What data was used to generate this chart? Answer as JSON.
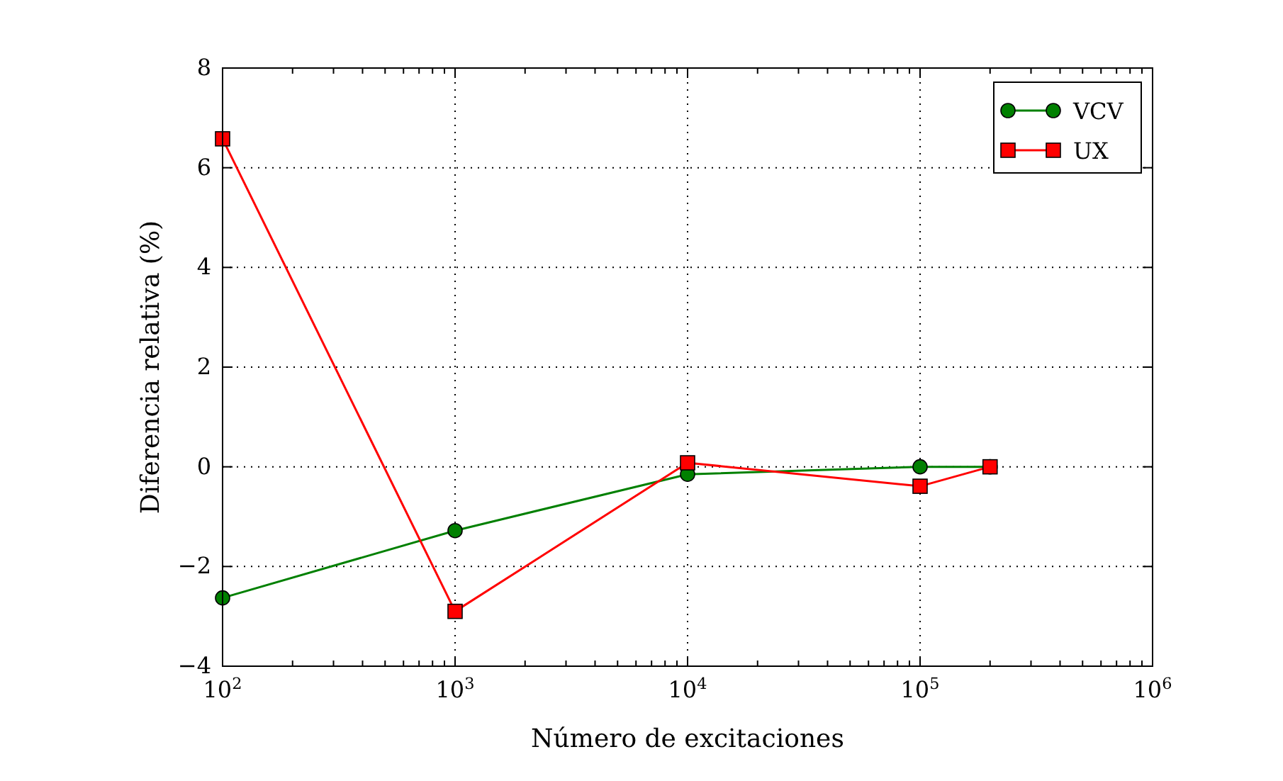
{
  "chart_data": {
    "type": "line",
    "xlabel": "Número de excitaciones",
    "ylabel": "Diferencia relativa (%)",
    "log": "x",
    "grid": true,
    "legend": "top right",
    "line_style": "solid",
    "xlim": [
      100,
      1000000
    ],
    "ylim": [
      -4,
      8
    ],
    "xticks": [
      {
        "value": 100,
        "label": "10$^{2}$"
      },
      {
        "value": 200,
        "label": null
      },
      {
        "value": 300,
        "label": null
      },
      {
        "value": 400,
        "label": null
      },
      {
        "value": 500,
        "label": null
      },
      {
        "value": 600,
        "label": null
      },
      {
        "value": 700,
        "label": null
      },
      {
        "value": 800,
        "label": null
      },
      {
        "value": 900,
        "label": null
      },
      {
        "value": 1000,
        "label": "10$^{3}$"
      },
      {
        "value": 2000,
        "label": null
      },
      {
        "value": 3000,
        "label": null
      },
      {
        "value": 4000,
        "label": null
      },
      {
        "value": 5000,
        "label": null
      },
      {
        "value": 6000,
        "label": null
      },
      {
        "value": 7000,
        "label": null
      },
      {
        "value": 8000,
        "label": null
      },
      {
        "value": 9000,
        "label": null
      },
      {
        "value": 10000,
        "label": "10$^{4}$"
      },
      {
        "value": 20000,
        "label": null
      },
      {
        "value": 30000,
        "label": null
      },
      {
        "value": 40000,
        "label": null
      },
      {
        "value": 50000,
        "label": null
      },
      {
        "value": 60000,
        "label": null
      },
      {
        "value": 70000,
        "label": null
      },
      {
        "value": 80000,
        "label": null
      },
      {
        "value": 90000,
        "label": null
      },
      {
        "value": 100000,
        "label": "10$^{5}$"
      },
      {
        "value": 200000,
        "label": null
      },
      {
        "value": 300000,
        "label": null
      },
      {
        "value": 400000,
        "label": null
      },
      {
        "value": 500000,
        "label": null
      },
      {
        "value": 600000,
        "label": null
      },
      {
        "value": 700000,
        "label": null
      },
      {
        "value": 800000,
        "label": null
      },
      {
        "value": 900000,
        "label": null
      },
      {
        "value": 1000000,
        "label": "10$^{6}$"
      }
    ],
    "yticks": [
      {
        "value": -4,
        "label": "−4"
      },
      {
        "value": -2,
        "label": "−2"
      },
      0,
      2,
      4,
      6,
      8
    ],
    "x": [
      100,
      1000,
      10000,
      100000,
      200000
    ],
    "series": [
      {
        "name": "VCV",
        "color": "#008000",
        "marker": "circle",
        "values": [
          -2.63,
          -1.28,
          -0.15,
          0,
          0
        ]
      },
      {
        "name": "UX",
        "color": "#ff0000",
        "marker": "square",
        "values": [
          6.58,
          -2.9,
          0.08,
          -0.39,
          0
        ]
      }
    ]
  }
}
